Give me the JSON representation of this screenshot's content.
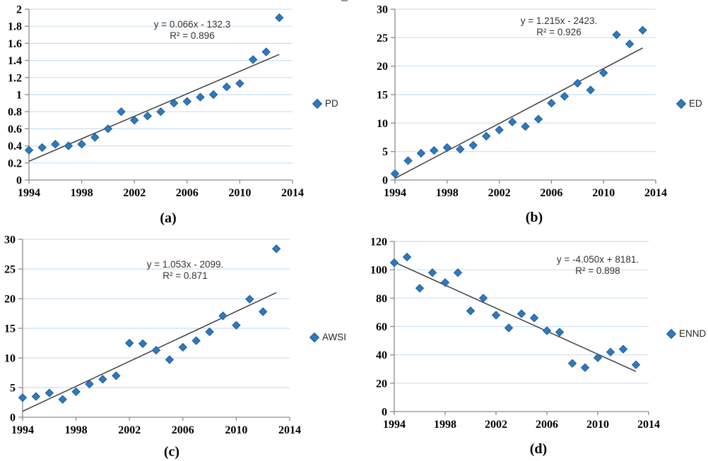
{
  "figure": {
    "description": "Four scatter plots with linear trendlines, panels (a)-(d), years 1994-2013",
    "background": "#ffffff"
  },
  "colors": {
    "marker_fill": "#2F79BE",
    "marker_stroke": "#1F5C99",
    "gridline": "#CCE0F2",
    "axis": "#8C8C8C",
    "trendline": "#404040",
    "tick_label": "#000000",
    "annotation_text": "#333333",
    "legend_text": "#262626"
  },
  "chart_data": [
    {
      "panel": "a",
      "type": "scatter",
      "legend": "PD",
      "caption": "(a)",
      "x": [
        1994,
        1995,
        1996,
        1997,
        1998,
        1999,
        2000,
        2001,
        2002,
        2003,
        2004,
        2005,
        2006,
        2007,
        2008,
        2009,
        2010,
        2011,
        2012,
        2013
      ],
      "values": [
        0.35,
        0.38,
        0.42,
        0.4,
        0.42,
        0.5,
        0.6,
        0.8,
        0.7,
        0.75,
        0.8,
        0.9,
        0.92,
        0.97,
        1.0,
        1.09,
        1.13,
        1.41,
        1.5,
        1.9
      ],
      "trendline": {
        "equation": "y = 0.066x - 132.3",
        "r2": "R² = 0.896",
        "x_start": 1994,
        "y_start": 0.22,
        "x_end": 2013,
        "y_end": 1.47
      },
      "xlim": [
        1994,
        2014
      ],
      "xticks": [
        1994,
        1998,
        2002,
        2006,
        2010,
        2014
      ],
      "ylim": [
        0,
        2
      ],
      "yticks": [
        0,
        0.2,
        0.4,
        0.6,
        0.8,
        1,
        1.2,
        1.4,
        1.6,
        1.8,
        2
      ],
      "ytick_labels": [
        "0",
        "0.2",
        "0.4",
        "0.6",
        "0.8",
        "1",
        "1.2",
        "1.4",
        "1.6",
        "1.8",
        "2"
      ],
      "grid": true,
      "legend_position": "right-middle"
    },
    {
      "panel": "b",
      "type": "scatter",
      "legend": "ED",
      "caption": "(b)",
      "x": [
        1994,
        1995,
        1996,
        1997,
        1998,
        1999,
        2000,
        2001,
        2002,
        2003,
        2004,
        2005,
        2006,
        2007,
        2008,
        2009,
        2010,
        2011,
        2012,
        2013
      ],
      "values": [
        1.1,
        3.4,
        4.7,
        5.2,
        5.7,
        5.4,
        6.1,
        7.7,
        8.8,
        10.2,
        9.4,
        10.7,
        13.5,
        14.7,
        17.0,
        15.8,
        18.8,
        25.5,
        23.9,
        26.3
      ],
      "trendline": {
        "equation": "y = 1.215x - 2423.",
        "r2": "R² = 0.926",
        "x_start": 1994,
        "y_start": 0.3,
        "x_end": 2013,
        "y_end": 23.2
      },
      "xlim": [
        1994,
        2014
      ],
      "xticks": [
        1994,
        1998,
        2002,
        2006,
        2010,
        2014
      ],
      "ylim": [
        0,
        30
      ],
      "yticks": [
        0,
        5,
        10,
        15,
        20,
        25,
        30
      ],
      "ytick_labels": [
        "0",
        "5",
        "10",
        "15",
        "20",
        "25",
        "30"
      ],
      "grid": true,
      "legend_position": "right-middle"
    },
    {
      "panel": "c",
      "type": "scatter",
      "legend": "AWSI",
      "caption": "(c)",
      "x": [
        1994,
        1995,
        1996,
        1997,
        1998,
        1999,
        2000,
        2001,
        2002,
        2003,
        2004,
        2005,
        2006,
        2007,
        2008,
        2009,
        2010,
        2011,
        2012,
        2013
      ],
      "values": [
        3.3,
        3.5,
        4.1,
        3.0,
        4.3,
        5.6,
        6.4,
        7.0,
        12.5,
        12.4,
        11.3,
        9.7,
        11.8,
        12.9,
        14.4,
        17.1,
        15.5,
        19.9,
        17.8,
        28.4
      ],
      "trendline": {
        "equation": "y = 1.053x - 2099.",
        "r2": "R² = 0.871",
        "x_start": 1994,
        "y_start": 1.0,
        "x_end": 2013,
        "y_end": 21.0
      },
      "xlim": [
        1994,
        2014
      ],
      "xticks": [
        1994,
        1998,
        2002,
        2006,
        2010,
        2014
      ],
      "ylim": [
        0,
        30
      ],
      "yticks": [
        0,
        5,
        10,
        15,
        20,
        25,
        30
      ],
      "ytick_labels": [
        "0",
        "5",
        "10",
        "15",
        "20",
        "25",
        "30"
      ],
      "grid": true,
      "legend_position": "right-middle"
    },
    {
      "panel": "d",
      "type": "scatter",
      "legend": "ENND",
      "caption": "(d)",
      "x": [
        1994,
        1995,
        1996,
        1997,
        1998,
        1999,
        2000,
        2001,
        2002,
        2003,
        2004,
        2005,
        2006,
        2007,
        2008,
        2009,
        2010,
        2011,
        2012,
        2013
      ],
      "values": [
        105,
        109,
        87,
        98,
        91,
        98,
        71,
        80,
        68,
        59,
        69,
        66,
        57,
        56,
        34,
        31,
        38,
        42,
        44,
        33
      ],
      "trendline": {
        "equation": "y = -4.050x + 8181.",
        "r2": "R² = 0.898",
        "x_start": 1994,
        "y_start": 105.4,
        "x_end": 2013,
        "y_end": 28.3
      },
      "xlim": [
        1994,
        2014
      ],
      "xticks": [
        1994,
        1998,
        2002,
        2006,
        2010,
        2014
      ],
      "ylim": [
        0,
        120
      ],
      "yticks": [
        0,
        20,
        40,
        60,
        80,
        100,
        120
      ],
      "ytick_labels": [
        "0",
        "20",
        "40",
        "60",
        "80",
        "100",
        "120"
      ],
      "grid": true,
      "legend_position": "right-middle"
    }
  ]
}
